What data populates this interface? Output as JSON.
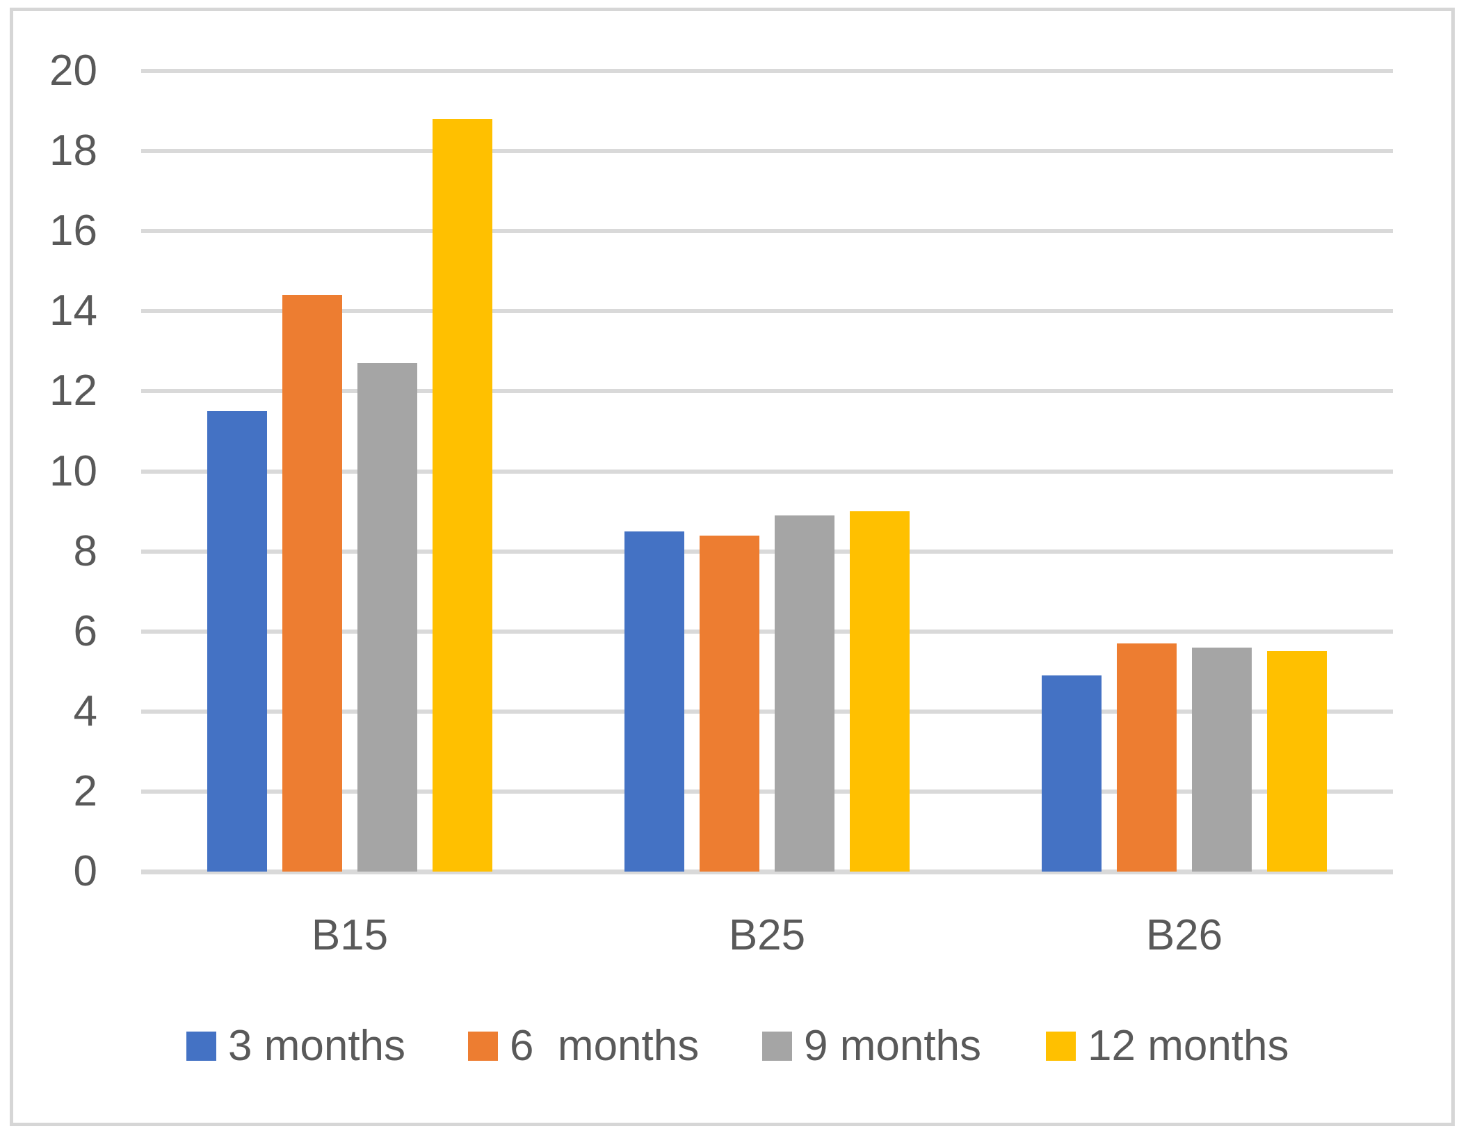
{
  "figure": {
    "background_color": "#FFFFFF",
    "border_color": "#D6D6D6",
    "text_color": "#595959",
    "gridline_color": "#D9D9D9"
  },
  "chart_data": {
    "type": "bar",
    "title": "",
    "xlabel": "",
    "ylabel": "",
    "categories": [
      "B15",
      "B25",
      "B26"
    ],
    "series": [
      {
        "name": "3 months",
        "color": "#4472C4",
        "values": [
          11.5,
          8.5,
          4.9
        ]
      },
      {
        "name": "6  months",
        "color": "#ED7D31",
        "values": [
          14.4,
          8.4,
          5.7
        ]
      },
      {
        "name": "9 months",
        "color": "#A5A5A5",
        "values": [
          12.7,
          8.9,
          5.6
        ]
      },
      {
        "name": "12 months",
        "color": "#FFC000",
        "values": [
          18.8,
          9.0,
          5.5
        ]
      }
    ],
    "ylim": [
      0,
      20
    ],
    "ytick_step": 2,
    "yticks": [
      0,
      2,
      4,
      6,
      8,
      10,
      12,
      14,
      16,
      18,
      20
    ],
    "grid": true,
    "legend_position": "bottom"
  }
}
